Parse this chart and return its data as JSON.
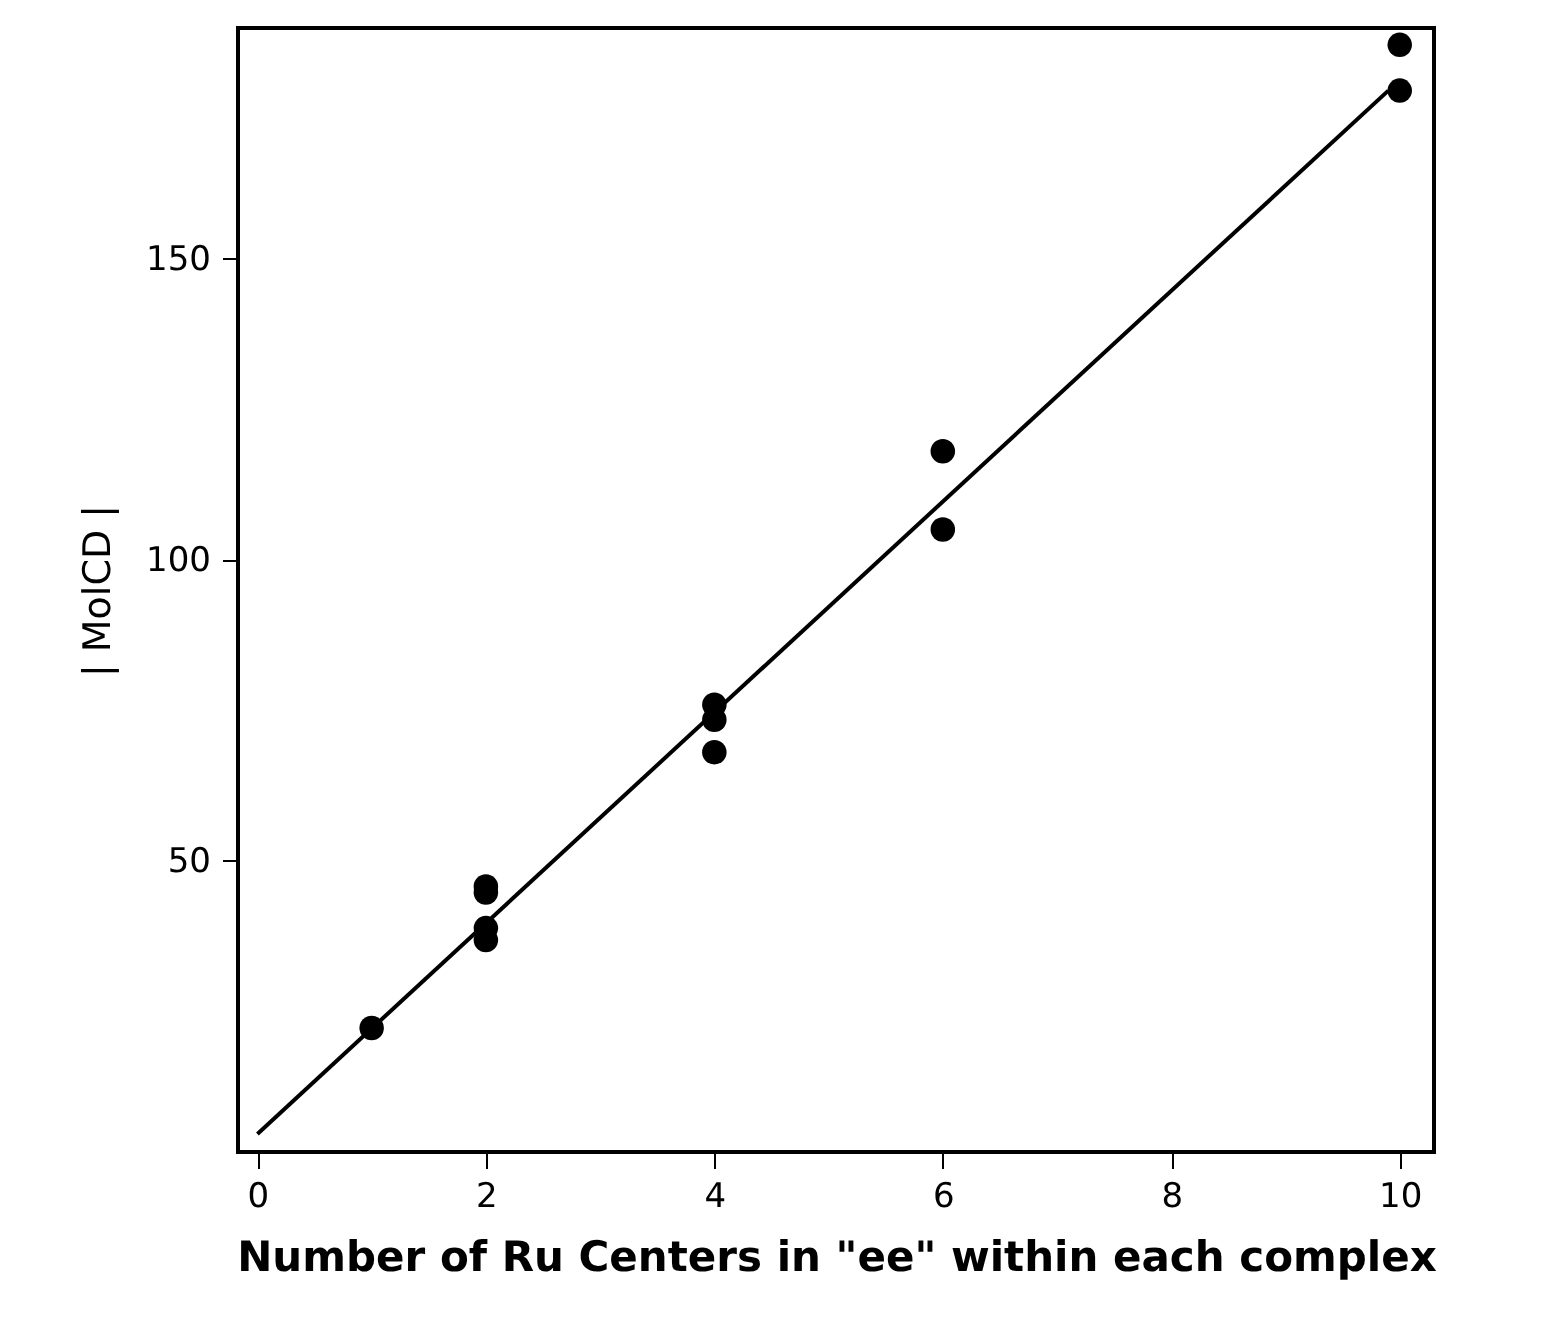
{
  "chart_data": {
    "type": "scatter",
    "xlabel": "Number of Ru Centers in \"ee\" within each complex",
    "ylabel": "| MolCD |",
    "xlim": [
      -0.17,
      10.3
    ],
    "ylim": [
      1.6,
      188.3
    ],
    "xticks": [
      0,
      2,
      4,
      6,
      8,
      10
    ],
    "yticks": [
      50,
      100,
      150
    ],
    "grid": false,
    "series": [
      {
        "color": "#000000",
        "marker": "circle",
        "x": [
          1,
          2,
          2,
          2,
          2,
          4,
          4,
          4,
          6,
          6,
          10,
          10
        ],
        "values": [
          22.2,
          45.7,
          44.7,
          38.8,
          36.8,
          75.9,
          73.4,
          68.0,
          118.0,
          105.0,
          185.5,
          177.9
        ]
      },
      {
        "type": "line",
        "color": "#000000",
        "line_style": "solid",
        "marker": "none",
        "x": [
          0,
          9.9
        ],
        "values": [
          4.6,
          177.9
        ]
      }
    ]
  }
}
